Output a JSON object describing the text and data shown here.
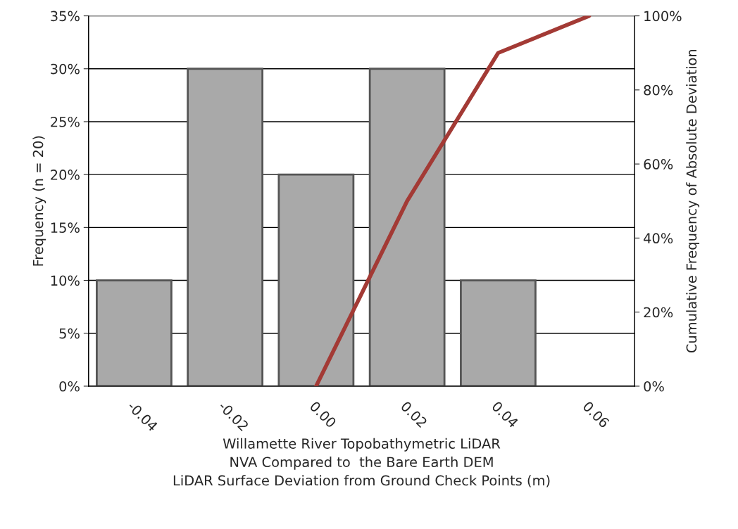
{
  "chart_data": {
    "type": "bar",
    "categories": [
      "-0.04",
      "-0.02",
      "0.00",
      "0.02",
      "0.04",
      "0.06"
    ],
    "series": [
      {
        "color": "#a9a9a9",
        "values": [
          10,
          30,
          20,
          30,
          10,
          0
        ]
      },
      {
        "type": "line",
        "axis": "y2",
        "color": "#a33a35",
        "values": [
          null,
          null,
          0,
          50,
          90,
          100
        ]
      }
    ],
    "xlabel": "Willamette River Topobathymetric LiDAR\nNVA Compared to  the Bare Earth DEM\nLiDAR Surface Deviation from Ground Check Points (m)",
    "ylabel": "Frequency (n = 20)",
    "y2label": "Cumulative Frequency of Absolute Deviation",
    "ylim": [
      0,
      35
    ],
    "yticks": [
      {
        "value": 0,
        "label": "0%"
      },
      {
        "value": 5,
        "label": "5%"
      },
      {
        "value": 10,
        "label": "10%"
      },
      {
        "value": 15,
        "label": "15%"
      },
      {
        "value": 20,
        "label": "20%"
      },
      {
        "value": 25,
        "label": "25%"
      },
      {
        "value": 30,
        "label": "30%"
      },
      {
        "value": 35,
        "label": "35%"
      }
    ],
    "y2lim": [
      0,
      100
    ],
    "y2ticks": [
      {
        "value": 0,
        "label": "0%"
      },
      {
        "value": 20,
        "label": "20%"
      },
      {
        "value": 40,
        "label": "40%"
      },
      {
        "value": 60,
        "label": "60%"
      },
      {
        "value": 80,
        "label": "80%"
      },
      {
        "value": 100,
        "label": "100%"
      }
    ],
    "grid": "y",
    "legend": false,
    "marker": "none",
    "line_style": "solid"
  }
}
